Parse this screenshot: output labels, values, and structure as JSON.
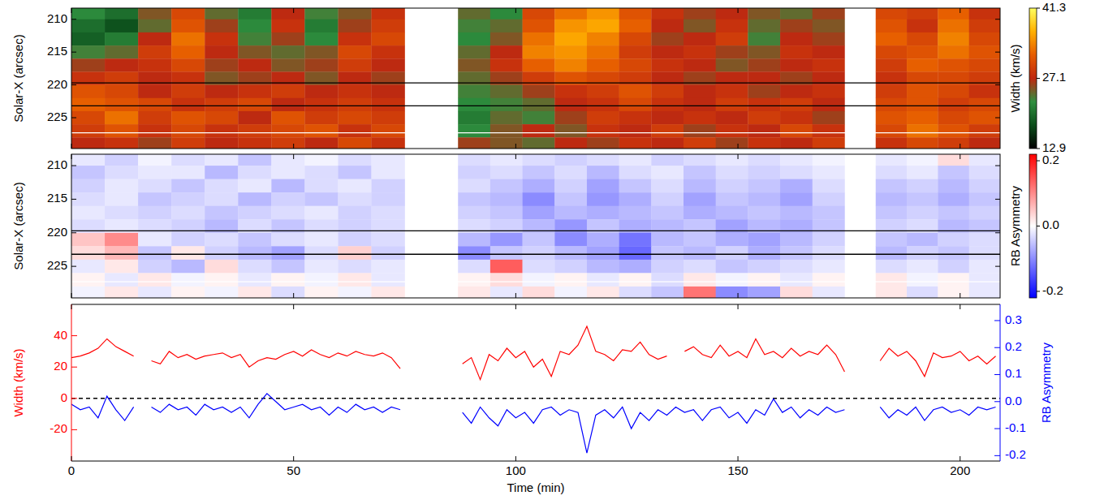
{
  "chart_data": [
    {
      "type": "heatmap",
      "ylabel": "Solar-X (arcsec)",
      "tick_labels": "y",
      "xlim": [
        0,
        209
      ],
      "xticks": [
        0,
        50,
        100,
        150,
        200
      ],
      "ylim": [
        208.3,
        229.7
      ],
      "yticks": [
        210,
        215,
        220,
        225
      ],
      "x_bins": [
        0,
        7.5,
        15,
        22.5,
        30,
        37.5,
        45,
        52.5,
        60,
        67.5,
        75,
        87,
        94.25,
        101.5,
        108.75,
        116,
        123.25,
        130.5,
        137.75,
        145,
        152.25,
        159.5,
        166.75,
        174,
        181,
        188,
        195,
        202,
        209
      ],
      "y_bins": [
        208,
        210,
        212,
        214,
        216,
        218,
        220,
        222,
        224,
        226,
        228,
        230
      ],
      "cells": [
        [
          22,
          20,
          25,
          30,
          24,
          21,
          27,
          23,
          25,
          28,
          null,
          24,
          22,
          30,
          33,
          35,
          31,
          28,
          26,
          27,
          25,
          24,
          26,
          null,
          30,
          29,
          32,
          28
        ],
        [
          20,
          18,
          24,
          31,
          26,
          22,
          28,
          21,
          26,
          29,
          null,
          23,
          24,
          31,
          35,
          36,
          32,
          27,
          25,
          28,
          24,
          26,
          25,
          null,
          31,
          28,
          33,
          29
        ],
        [
          19,
          21,
          27,
          33,
          28,
          23,
          26,
          22,
          28,
          30,
          null,
          22,
          25,
          33,
          36,
          34,
          30,
          26,
          27,
          29,
          23,
          27,
          26,
          null,
          32,
          30,
          34,
          30
        ],
        [
          23,
          24,
          29,
          32,
          27,
          25,
          24,
          25,
          30,
          28,
          null,
          24,
          27,
          34,
          35,
          33,
          29,
          27,
          28,
          26,
          25,
          28,
          27,
          null,
          30,
          31,
          33,
          31
        ],
        [
          26,
          27,
          28,
          30,
          26,
          27,
          25,
          26,
          29,
          27,
          null,
          25,
          28,
          32,
          34,
          32,
          30,
          28,
          27,
          25,
          26,
          27,
          28,
          null,
          29,
          32,
          31,
          30
        ],
        [
          28,
          29,
          27,
          28,
          25,
          26,
          27,
          25,
          27,
          26,
          null,
          24,
          26,
          29,
          31,
          30,
          29,
          27,
          26,
          27,
          27,
          26,
          27,
          null,
          28,
          30,
          30,
          29
        ],
        [
          31,
          30,
          27,
          29,
          27,
          28,
          29,
          27,
          28,
          27,
          null,
          23,
          24,
          26,
          28,
          29,
          31,
          29,
          27,
          28,
          26,
          27,
          28,
          null,
          29,
          31,
          30,
          28
        ],
        [
          32,
          31,
          30,
          28,
          29,
          30,
          27,
          28,
          29,
          28,
          null,
          22,
          23,
          24,
          27,
          28,
          30,
          28,
          27,
          29,
          28,
          29,
          27,
          null,
          30,
          31,
          29,
          30
        ],
        [
          30,
          33,
          29,
          31,
          30,
          27,
          31,
          29,
          30,
          29,
          null,
          21,
          24,
          23,
          26,
          29,
          28,
          27,
          28,
          27,
          29,
          28,
          26,
          null,
          31,
          32,
          30,
          31
        ],
        [
          29,
          31,
          28,
          30,
          28,
          29,
          30,
          31,
          28,
          30,
          null,
          22,
          25,
          27,
          25,
          28,
          27,
          29,
          26,
          28,
          27,
          30,
          28,
          null,
          30,
          33,
          31,
          29
        ],
        [
          27,
          28,
          26,
          29,
          27,
          28,
          29,
          27,
          30,
          28,
          null,
          26,
          25,
          24,
          27,
          26,
          28,
          27,
          29,
          26,
          28,
          27,
          29,
          null,
          28,
          30,
          29,
          27
        ]
      ],
      "hlines": [
        {
          "value": 219.7,
          "color": "#000000"
        },
        {
          "value": 223.2,
          "color": "#000000"
        },
        {
          "value": 227.3,
          "color": "#ffffff"
        }
      ],
      "colorbar": {
        "label": "Width (km/s)",
        "range": [
          12.9,
          41.3
        ],
        "ticks": [
          12.9,
          27.1,
          41.3
        ],
        "colors": [
          "#000000",
          "#0b4d1a",
          "#2f8f3f",
          "#c02810",
          "#e65c00",
          "#ffb000",
          "#ffff60"
        ]
      }
    },
    {
      "type": "heatmap",
      "ylabel": "Solar-X (arcsec)",
      "tick_labels": "y",
      "xlim": [
        0,
        209
      ],
      "xticks": [
        0,
        50,
        100,
        150,
        200
      ],
      "ylim": [
        208.3,
        229.7
      ],
      "yticks": [
        210,
        215,
        220,
        225
      ],
      "x_bins": [
        0,
        7.5,
        15,
        22.5,
        30,
        37.5,
        45,
        52.5,
        60,
        67.5,
        75,
        87,
        94.25,
        101.5,
        108.75,
        116,
        123.25,
        130.5,
        137.75,
        145,
        152.25,
        159.5,
        166.75,
        174,
        181,
        188,
        195,
        202,
        209
      ],
      "y_bins": [
        208,
        210,
        212,
        214,
        216,
        218,
        220,
        222,
        224,
        226,
        228,
        230
      ],
      "cells": [
        [
          -0.02,
          -0.04,
          -0.01,
          -0.03,
          -0.02,
          -0.05,
          -0.02,
          -0.01,
          -0.03,
          -0.02,
          null,
          -0.03,
          -0.02,
          -0.03,
          -0.04,
          -0.03,
          -0.02,
          -0.04,
          -0.03,
          -0.02,
          -0.03,
          -0.02,
          -0.01,
          null,
          -0.02,
          -0.01,
          0.03,
          -0.02
        ],
        [
          -0.05,
          -0.03,
          -0.02,
          -0.02,
          -0.06,
          -0.03,
          -0.02,
          -0.03,
          -0.05,
          -0.02,
          null,
          -0.04,
          -0.03,
          -0.05,
          -0.03,
          -0.06,
          -0.03,
          -0.02,
          -0.05,
          -0.03,
          -0.04,
          -0.03,
          -0.02,
          null,
          -0.03,
          -0.02,
          -0.05,
          -0.03
        ],
        [
          -0.04,
          -0.02,
          -0.03,
          -0.05,
          -0.03,
          -0.02,
          -0.06,
          -0.03,
          -0.02,
          -0.04,
          null,
          -0.03,
          -0.05,
          -0.07,
          -0.04,
          -0.08,
          -0.05,
          -0.03,
          -0.06,
          -0.04,
          -0.05,
          -0.07,
          -0.03,
          null,
          -0.05,
          -0.04,
          -0.06,
          -0.04
        ],
        [
          -0.03,
          -0.02,
          -0.05,
          -0.04,
          -0.03,
          -0.06,
          -0.04,
          -0.05,
          -0.03,
          -0.04,
          null,
          -0.05,
          -0.06,
          -0.1,
          -0.05,
          -0.09,
          -0.07,
          -0.04,
          -0.08,
          -0.05,
          -0.06,
          -0.08,
          -0.04,
          null,
          -0.06,
          -0.05,
          -0.07,
          -0.05
        ],
        [
          -0.02,
          -0.03,
          -0.04,
          -0.03,
          -0.05,
          -0.04,
          -0.03,
          -0.02,
          -0.04,
          -0.03,
          null,
          -0.04,
          -0.05,
          -0.08,
          -0.06,
          -0.07,
          -0.06,
          -0.05,
          -0.07,
          -0.06,
          -0.05,
          -0.06,
          -0.05,
          null,
          -0.05,
          -0.04,
          -0.05,
          -0.04
        ],
        [
          -0.03,
          -0.02,
          -0.03,
          -0.04,
          -0.06,
          -0.03,
          -0.05,
          -0.03,
          -0.04,
          -0.03,
          null,
          -0.03,
          -0.04,
          -0.06,
          -0.09,
          -0.05,
          -0.07,
          -0.06,
          -0.05,
          -0.08,
          -0.06,
          -0.07,
          -0.05,
          null,
          -0.04,
          -0.03,
          -0.06,
          -0.05
        ],
        [
          0.05,
          0.1,
          -0.02,
          -0.04,
          -0.03,
          -0.05,
          -0.03,
          -0.02,
          -0.04,
          -0.03,
          null,
          -0.06,
          -0.09,
          -0.05,
          -0.1,
          -0.07,
          -0.12,
          -0.06,
          -0.05,
          -0.07,
          -0.08,
          -0.06,
          -0.04,
          null,
          -0.05,
          -0.06,
          -0.04,
          -0.03
        ],
        [
          0.03,
          0.06,
          -0.05,
          0.02,
          -0.04,
          -0.06,
          -0.08,
          -0.03,
          0.04,
          -0.04,
          null,
          -0.1,
          -0.05,
          -0.04,
          -0.06,
          -0.08,
          -0.13,
          -0.05,
          -0.06,
          -0.04,
          -0.07,
          -0.05,
          -0.03,
          null,
          -0.06,
          -0.04,
          -0.05,
          -0.03
        ],
        [
          -0.02,
          0.02,
          -0.04,
          -0.06,
          0.03,
          -0.03,
          -0.05,
          -0.02,
          -0.03,
          -0.02,
          null,
          -0.03,
          0.14,
          -0.03,
          -0.04,
          -0.06,
          -0.07,
          -0.04,
          -0.03,
          -0.05,
          -0.04,
          -0.03,
          -0.02,
          null,
          -0.03,
          -0.02,
          -0.04,
          -0.02
        ],
        [
          0.01,
          -0.02,
          0.02,
          -0.01,
          0.01,
          -0.02,
          0.01,
          -0.01,
          0.02,
          -0.02,
          null,
          0.01,
          0.03,
          -0.01,
          0.01,
          -0.02,
          0.01,
          -0.03,
          0.02,
          -0.01,
          0.01,
          -0.02,
          0.01,
          null,
          0.02,
          -0.01,
          0.01,
          -0.02
        ],
        [
          -0.01,
          0.02,
          -0.02,
          0.01,
          -0.01,
          0.02,
          -0.03,
          0.01,
          -0.01,
          0.02,
          null,
          0.02,
          -0.02,
          0.03,
          -0.01,
          0.02,
          -0.03,
          -0.05,
          0.12,
          -0.1,
          -0.08,
          0.03,
          -0.02,
          null,
          0.02,
          -0.03,
          0.01,
          -0.02
        ]
      ],
      "hlines": [
        {
          "value": 219.7,
          "color": "#000000"
        },
        {
          "value": 223.2,
          "color": "#000000"
        },
        {
          "value": 227.3,
          "color": "#ffffff"
        }
      ],
      "colorbar": {
        "label": "RB Asymmetry",
        "range": [
          -0.22,
          0.22
        ],
        "ticks": [
          0.2,
          {
            "value": 0,
            "label": "0.0"
          },
          -0.2
        ],
        "colors": [
          "#0000ff",
          "#ffffff",
          "#ff0000"
        ]
      }
    },
    {
      "type": "line",
      "xlabel": "Time (min)",
      "xlim": [
        0,
        209
      ],
      "xticks": [
        0,
        50,
        100,
        150,
        200
      ],
      "ylim": [
        -40,
        60
      ],
      "yticks": [
        -20,
        0,
        20,
        40
      ],
      "y2lim": [
        -0.22,
        0.36
      ],
      "y2ticks": [
        -0.2,
        -0.1,
        {
          "value": 0,
          "label": "0.0"
        },
        0.1,
        0.2,
        0.3
      ],
      "hlines": [
        {
          "value": 0,
          "color": "#000000",
          "line_style": "dashed"
        }
      ],
      "x": [
        0,
        2,
        4,
        6,
        8,
        10,
        12,
        14,
        16,
        18,
        20,
        22,
        24,
        26,
        28,
        30,
        32,
        34,
        36,
        38,
        40,
        42,
        44,
        46,
        48,
        50,
        52,
        54,
        56,
        58,
        60,
        62,
        64,
        66,
        68,
        70,
        72,
        74,
        76,
        78,
        80,
        82,
        84,
        86,
        88,
        90,
        92,
        94,
        96,
        98,
        100,
        102,
        104,
        106,
        108,
        110,
        112,
        114,
        116,
        118,
        120,
        122,
        124,
        126,
        128,
        130,
        132,
        134,
        136,
        138,
        140,
        142,
        144,
        146,
        148,
        150,
        152,
        154,
        156,
        158,
        160,
        162,
        164,
        166,
        168,
        170,
        172,
        174,
        176,
        178,
        180,
        182,
        184,
        186,
        188,
        190,
        192,
        194,
        196,
        198,
        200,
        202,
        204,
        206,
        208
      ],
      "series": [
        {
          "name": "Width (km/s)",
          "color": "#ff0000",
          "values": [
            26,
            27,
            29,
            32,
            38,
            33,
            30,
            27,
            null,
            24,
            22,
            30,
            26,
            28,
            25,
            27,
            28,
            29,
            26,
            28,
            20,
            24,
            26,
            25,
            28,
            30,
            27,
            31,
            28,
            26,
            29,
            27,
            30,
            28,
            27,
            29,
            26,
            19,
            null,
            null,
            null,
            null,
            null,
            null,
            22,
            26,
            12,
            28,
            24,
            32,
            26,
            30,
            20,
            25,
            14,
            30,
            28,
            34,
            46,
            30,
            28,
            24,
            31,
            30,
            36,
            28,
            25,
            27,
            null,
            30,
            33,
            28,
            26,
            34,
            27,
            30,
            26,
            38,
            28,
            30,
            26,
            32,
            27,
            30,
            28,
            34,
            28,
            17,
            null,
            null,
            null,
            24,
            32,
            27,
            30,
            24,
            14,
            29,
            26,
            27,
            30,
            24,
            27,
            22,
            27
          ]
        },
        {
          "name": "RB Asymmetry",
          "color": "#0000ff",
          "axis": "y2",
          "values": [
            -0.01,
            -0.03,
            -0.02,
            -0.06,
            0.02,
            -0.03,
            -0.07,
            -0.02,
            null,
            -0.02,
            -0.04,
            -0.01,
            -0.03,
            -0.02,
            -0.05,
            -0.01,
            -0.03,
            -0.02,
            -0.04,
            -0.02,
            -0.06,
            -0.01,
            0.03,
            0.0,
            -0.03,
            -0.02,
            -0.01,
            -0.03,
            -0.02,
            -0.05,
            -0.02,
            -0.04,
            -0.01,
            -0.03,
            -0.02,
            -0.04,
            -0.02,
            -0.03,
            null,
            null,
            null,
            null,
            null,
            null,
            -0.04,
            -0.08,
            -0.02,
            -0.06,
            -0.09,
            -0.03,
            -0.06,
            -0.04,
            -0.08,
            -0.03,
            -0.02,
            -0.05,
            -0.03,
            -0.04,
            -0.19,
            -0.05,
            -0.03,
            -0.06,
            -0.02,
            -0.1,
            -0.04,
            -0.07,
            -0.03,
            -0.05,
            -0.02,
            -0.04,
            -0.03,
            -0.07,
            -0.03,
            -0.02,
            -0.06,
            -0.04,
            -0.08,
            -0.03,
            -0.05,
            0.01,
            -0.04,
            -0.02,
            -0.06,
            -0.03,
            -0.05,
            -0.02,
            -0.04,
            -0.03,
            null,
            null,
            null,
            -0.02,
            -0.06,
            -0.03,
            -0.05,
            -0.02,
            -0.07,
            -0.03,
            -0.02,
            -0.04,
            -0.03,
            -0.05,
            -0.02,
            -0.03,
            -0.02
          ]
        }
      ]
    }
  ]
}
